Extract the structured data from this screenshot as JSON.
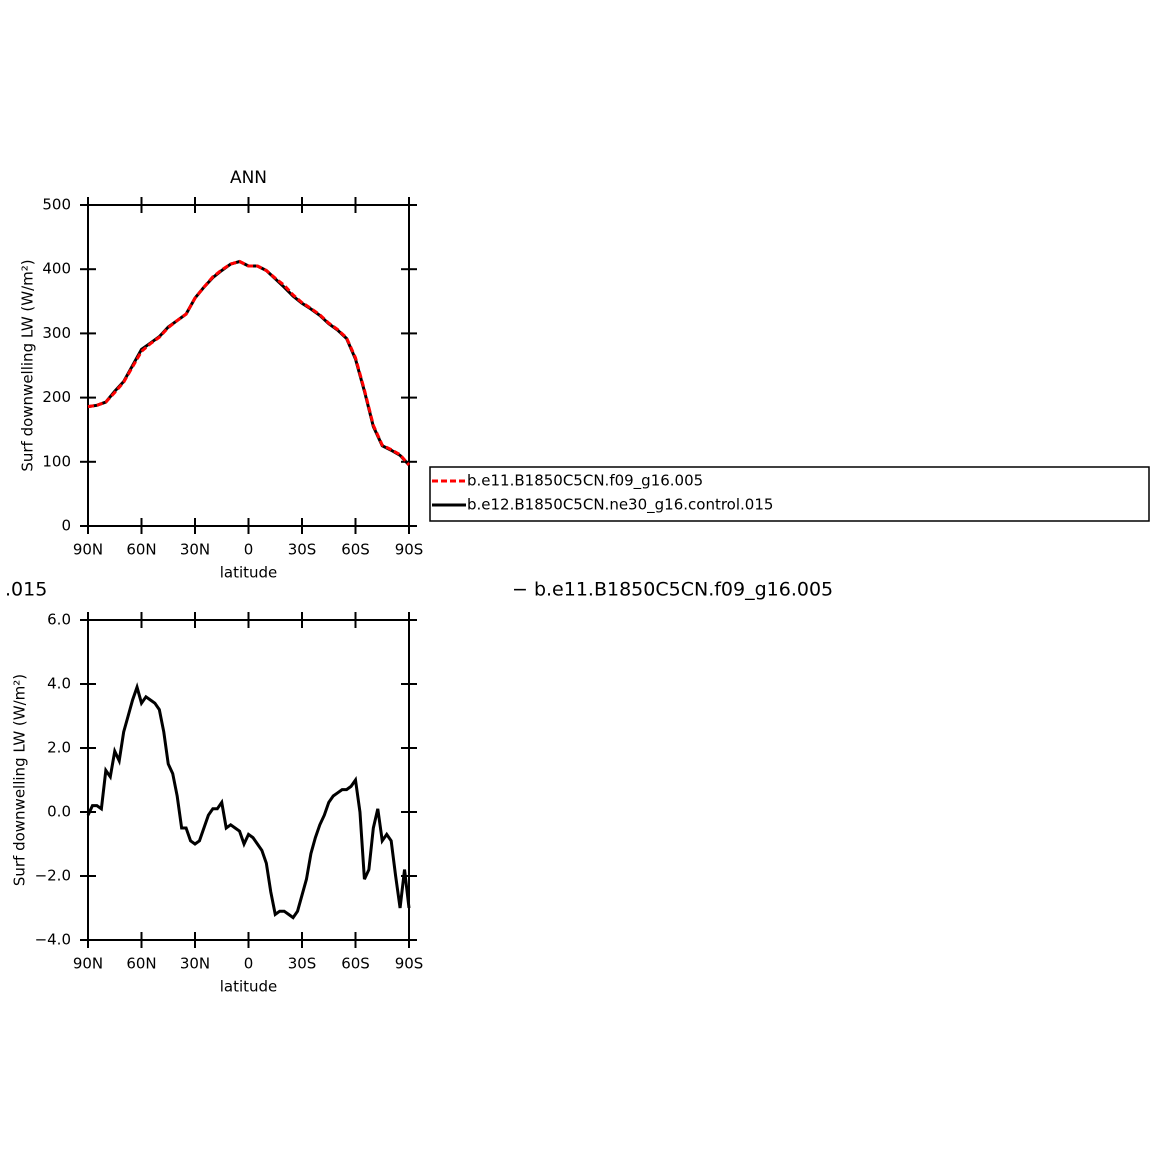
{
  "chart_data": [
    {
      "type": "line",
      "title": "ANN",
      "xlabel": "latitude",
      "ylabel": "Surf downwelling LW (W/m²)",
      "x": [
        90,
        85,
        80,
        75,
        70,
        65,
        60,
        55,
        50,
        45,
        40,
        35,
        30,
        25,
        20,
        15,
        10,
        5,
        0,
        -5,
        -10,
        -15,
        -20,
        -25,
        -30,
        -35,
        -40,
        -45,
        -50,
        -55,
        -60,
        -65,
        -70,
        -75,
        -80,
        -85,
        -90
      ],
      "series": [
        {
          "name": "b.e11.B1850C5CN.f09_g16.005",
          "color": "#ff0000",
          "linestyle": "dashed",
          "values": [
            186,
            188,
            193,
            208,
            224,
            248,
            272,
            284,
            294,
            309,
            320,
            330,
            355,
            372,
            388,
            399,
            408,
            412,
            405,
            405,
            398,
            386,
            375,
            360,
            348,
            339,
            329,
            316,
            306,
            293,
            262,
            212,
            157,
            126,
            119,
            111,
            95
          ]
        },
        {
          "name": "b.e12.B1850C5CN.ne30_g16.control.015",
          "color": "#000000",
          "linestyle": "solid",
          "values": [
            186,
            188,
            193,
            210,
            225,
            250,
            275,
            285,
            295,
            310,
            320,
            330,
            355,
            372,
            387,
            398,
            408,
            412,
            405,
            405,
            398,
            385,
            372,
            358,
            347,
            338,
            328,
            315,
            305,
            292,
            260,
            210,
            155,
            125,
            118,
            110,
            95
          ]
        }
      ],
      "xlim": [
        90,
        -90
      ],
      "xticks": [
        {
          "value": 90,
          "label": "90N"
        },
        {
          "value": 60,
          "label": "60N"
        },
        {
          "value": 30,
          "label": "30N"
        },
        0,
        {
          "value": -30,
          "label": "30S"
        },
        {
          "value": -60,
          "label": "60S"
        },
        {
          "value": -90,
          "label": "90S"
        }
      ],
      "ylim": [
        0,
        500
      ],
      "yticks": [
        0,
        100,
        200,
        300,
        400,
        500
      ],
      "legend": "right"
    },
    {
      "type": "line",
      "xlabel": "latitude",
      "ylabel": "Surf downwelling LW (W/m²)",
      "x": [
        90,
        87.5,
        85,
        82.5,
        80,
        77.5,
        75,
        72.5,
        70,
        67.5,
        65,
        62.5,
        60,
        57.5,
        55,
        52.5,
        50,
        47.5,
        45,
        42.5,
        40,
        37.5,
        35,
        32.5,
        30,
        27.5,
        25,
        22.5,
        20,
        17.5,
        15,
        12.5,
        10,
        7.5,
        5,
        2.5,
        0,
        -2.5,
        -5,
        -7.5,
        -10,
        -12.5,
        -15,
        -17.5,
        -20,
        -22.5,
        -25,
        -27.5,
        -30,
        -32.5,
        -35,
        -37.5,
        -40,
        -42.5,
        -45,
        -47.5,
        -50,
        -52.5,
        -55,
        -57.5,
        -60,
        -62.5,
        -65,
        -67.5,
        -70,
        -72.5,
        -75,
        -77.5,
        -80,
        -82.5,
        -85,
        -87.5,
        -90
      ],
      "series": [
        {
          "color": "#000000",
          "linestyle": "solid",
          "values": [
            -0.1,
            0.2,
            0.2,
            0.1,
            1.3,
            1.1,
            1.9,
            1.6,
            2.5,
            3.0,
            3.5,
            3.9,
            3.4,
            3.6,
            3.5,
            3.4,
            3.2,
            2.5,
            1.5,
            1.2,
            0.5,
            -0.5,
            -0.5,
            -0.9,
            -1.0,
            -0.9,
            -0.5,
            -0.1,
            0.1,
            0.1,
            0.3,
            -0.5,
            -0.4,
            -0.5,
            -0.6,
            -1.0,
            -0.7,
            -0.8,
            -1.0,
            -1.2,
            -1.6,
            -2.5,
            -3.2,
            -3.1,
            -3.1,
            -3.2,
            -3.3,
            -3.1,
            -2.6,
            -2.1,
            -1.3,
            -0.8,
            -0.4,
            -0.1,
            0.3,
            0.5,
            0.6,
            0.7,
            0.7,
            0.8,
            1.0,
            0.0,
            -2.1,
            -1.8,
            -0.5,
            0.1,
            -0.9,
            -0.7,
            -0.9,
            -2.0,
            -3.0,
            -1.8,
            -3.0
          ]
        }
      ],
      "xlim": [
        90,
        -90
      ],
      "xticks": [
        {
          "value": 90,
          "label": "90N"
        },
        {
          "value": 60,
          "label": "60N"
        },
        {
          "value": 30,
          "label": "30N"
        },
        0,
        {
          "value": -30,
          "label": "30S"
        },
        {
          "value": -60,
          "label": "60S"
        },
        {
          "value": -90,
          "label": "90S"
        }
      ],
      "ylim": [
        -4,
        6
      ],
      "yticks": [
        {
          "value": -4,
          "label": "−4.0"
        },
        {
          "value": -2,
          "label": "−2.0"
        },
        {
          "value": 0,
          "label": "0.0"
        },
        {
          "value": 2,
          "label": "2.0"
        },
        {
          "value": 4,
          "label": "4.0"
        },
        {
          "value": 6,
          "label": "6.0"
        }
      ],
      "annotations": [
        ".015",
        "− b.e11.B1850C5CN.f09_g16.005"
      ]
    }
  ]
}
